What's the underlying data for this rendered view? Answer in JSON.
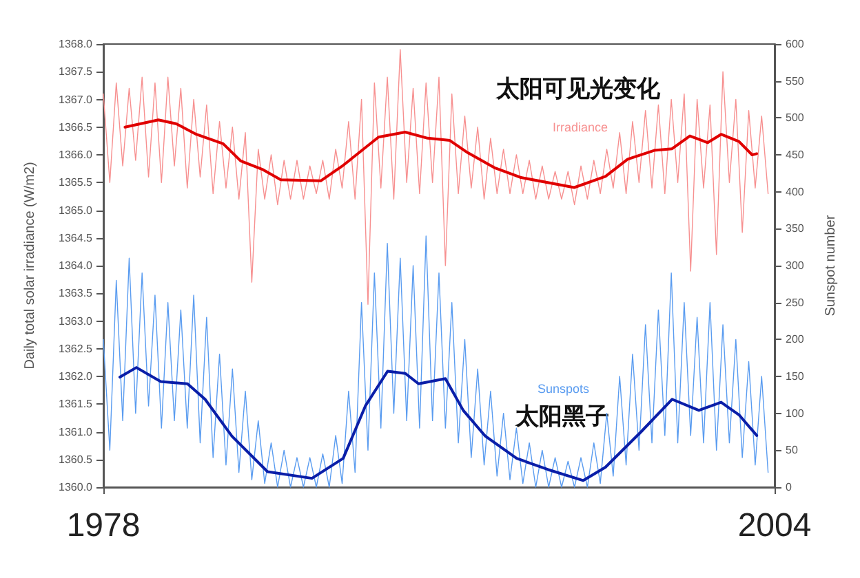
{
  "chart_data": {
    "type": "line",
    "ylabel": "Daily total solar irradiance (W/m2)",
    "y2label": "Sunspot number",
    "annotations": [
      "太阳可见光变化",
      "太阳黑子"
    ],
    "x": [
      1978.0,
      1978.25,
      1978.5,
      1978.75,
      1979.0,
      1979.25,
      1979.5,
      1979.75,
      1980.0,
      1980.25,
      1980.5,
      1980.75,
      1981.0,
      1981.25,
      1981.5,
      1981.75,
      1982.0,
      1982.25,
      1982.5,
      1982.75,
      1983.0,
      1983.25,
      1983.5,
      1983.75,
      1984.0,
      1984.25,
      1984.5,
      1984.75,
      1985.0,
      1985.25,
      1985.5,
      1985.75,
      1986.0,
      1986.25,
      1986.5,
      1986.75,
      1987.0,
      1987.25,
      1987.5,
      1987.75,
      1988.0,
      1988.25,
      1988.5,
      1988.75,
      1989.0,
      1989.25,
      1989.5,
      1989.75,
      1990.0,
      1990.25,
      1990.5,
      1990.75,
      1991.0,
      1991.25,
      1991.5,
      1991.75,
      1992.0,
      1992.25,
      1992.5,
      1992.75,
      1993.0,
      1993.25,
      1993.5,
      1993.75,
      1994.0,
      1994.25,
      1994.5,
      1994.75,
      1995.0,
      1995.25,
      1995.5,
      1995.75,
      1996.0,
      1996.25,
      1996.5,
      1996.75,
      1997.0,
      1997.25,
      1997.5,
      1997.75,
      1998.0,
      1998.25,
      1998.5,
      1998.75,
      1999.0,
      1999.25,
      1999.5,
      1999.75,
      2000.0,
      2000.25,
      2000.5,
      2000.75,
      2001.0,
      2001.25,
      2001.5,
      2001.75,
      2002.0,
      2002.25,
      2002.5,
      2002.75,
      2003.0,
      2003.25,
      2003.5,
      2003.75
    ],
    "series": [
      {
        "name": "Irradiance",
        "color": "#f79090",
        "values": [
          1367.1,
          1365.5,
          1367.3,
          1365.8,
          1367.2,
          1365.9,
          1367.4,
          1365.6,
          1367.3,
          1365.5,
          1367.4,
          1365.8,
          1367.2,
          1365.4,
          1367.0,
          1365.6,
          1366.9,
          1365.3,
          1366.6,
          1365.4,
          1366.5,
          1365.2,
          1366.4,
          1363.7,
          1366.1,
          1365.2,
          1366.0,
          1365.1,
          1365.9,
          1365.2,
          1365.9,
          1365.2,
          1365.8,
          1365.3,
          1365.9,
          1365.2,
          1366.1,
          1365.4,
          1366.6,
          1365.2,
          1367.0,
          1363.3,
          1367.3,
          1365.4,
          1367.4,
          1365.2,
          1367.9,
          1365.5,
          1367.2,
          1365.3,
          1367.3,
          1365.5,
          1367.4,
          1364.0,
          1367.1,
          1365.3,
          1366.7,
          1365.4,
          1366.5,
          1365.2,
          1366.3,
          1365.3,
          1366.1,
          1365.3,
          1366.0,
          1365.3,
          1365.9,
          1365.2,
          1365.8,
          1365.2,
          1365.7,
          1365.2,
          1365.7,
          1365.1,
          1365.8,
          1365.2,
          1365.9,
          1365.3,
          1366.1,
          1365.4,
          1366.4,
          1365.3,
          1366.6,
          1365.5,
          1366.8,
          1365.4,
          1366.9,
          1365.3,
          1367.0,
          1365.5,
          1367.1,
          1363.9,
          1367.0,
          1365.4,
          1366.9,
          1364.2,
          1367.5,
          1365.5,
          1367.0,
          1364.6,
          1366.8,
          1365.4,
          1366.7,
          1365.3
        ]
      },
      {
        "color": "#e00000",
        "x": [
          1978.84,
          1980.13,
          1980.83,
          1981.6,
          1982.64,
          1983.32,
          1984.19,
          1984.87,
          1986.42,
          1987.29,
          1988.66,
          1989.69,
          1990.56,
          1991.42,
          1992.11,
          1993.14,
          1994.18,
          1996.24,
          1997.45,
          1998.31,
          1999.34,
          2000.03,
          2000.72,
          2001.41,
          2001.93,
          2002.62,
          2003.13,
          2003.31
        ],
        "values": [
          1366.5,
          1366.63,
          1366.56,
          1366.37,
          1366.2,
          1365.89,
          1365.73,
          1365.55,
          1365.53,
          1365.81,
          1366.32,
          1366.41,
          1366.3,
          1366.26,
          1366.04,
          1365.77,
          1365.59,
          1365.41,
          1365.61,
          1365.92,
          1366.08,
          1366.11,
          1366.34,
          1366.22,
          1366.37,
          1366.24,
          1366.0,
          1366.02
        ]
      },
      {
        "name": "Sunspots",
        "color": "#5a9cf0",
        "axis": "y2",
        "values": [
          200,
          50,
          280,
          90,
          310,
          100,
          290,
          110,
          260,
          80,
          250,
          90,
          240,
          80,
          260,
          60,
          230,
          40,
          180,
          30,
          160,
          20,
          130,
          10,
          90,
          5,
          60,
          0,
          50,
          0,
          40,
          0,
          40,
          0,
          45,
          0,
          70,
          5,
          130,
          20,
          250,
          50,
          290,
          80,
          330,
          100,
          310,
          90,
          300,
          80,
          340,
          90,
          290,
          80,
          250,
          60,
          200,
          40,
          160,
          30,
          130,
          15,
          100,
          10,
          80,
          5,
          60,
          0,
          50,
          0,
          40,
          0,
          35,
          0,
          40,
          0,
          60,
          5,
          100,
          15,
          150,
          30,
          180,
          50,
          220,
          60,
          240,
          70,
          290,
          60,
          250,
          70,
          230,
          60,
          250,
          50,
          220,
          60,
          200,
          40,
          170,
          30,
          150,
          20
        ]
      },
      {
        "color": "#0a1ea8",
        "axis": "y2",
        "x": [
          1978.64,
          1979.28,
          1980.22,
          1981.26,
          1981.94,
          1982.98,
          1984.36,
          1986.08,
          1987.29,
          1988.15,
          1989.01,
          1989.7,
          1990.21,
          1991.25,
          1991.94,
          1992.8,
          1994.01,
          1995.21,
          1996.59,
          1997.45,
          1998.83,
          2000.03,
          2001.07,
          2001.93,
          2002.62,
          2003.31
        ],
        "values": [
          149,
          162,
          143,
          140,
          119,
          69,
          21,
          12,
          39,
          110,
          157,
          154,
          140,
          147,
          104,
          69,
          39,
          24,
          9,
          27,
          75,
          119,
          104,
          115,
          98,
          70
        ]
      }
    ],
    "xlim": [
      1978,
      2004
    ],
    "xticks": [
      1978,
      2004
    ],
    "ylim": [
      1360,
      1368
    ],
    "yticks": [
      {
        "value": 1360,
        "label": "1360.0"
      },
      {
        "value": 1360.5,
        "label": "1360.5"
      },
      {
        "value": 1361,
        "label": "1361.0"
      },
      {
        "value": 1361.5,
        "label": "1361.5"
      },
      {
        "value": 1362,
        "label": "1362.0"
      },
      {
        "value": 1362.5,
        "label": "1362.5"
      },
      {
        "value": 1363,
        "label": "1363.0"
      },
      {
        "value": 1363.5,
        "label": "1363.5"
      },
      {
        "value": 1364,
        "label": "1364.0"
      },
      {
        "value": 1364.5,
        "label": "1364.5"
      },
      {
        "value": 1365,
        "label": "1365.0"
      },
      {
        "value": 1365.5,
        "label": "1365.5"
      },
      {
        "value": 1366,
        "label": "1366.0"
      },
      {
        "value": 1366.5,
        "label": "1366.5"
      },
      {
        "value": 1367,
        "label": "1367.0"
      },
      {
        "value": 1367.5,
        "label": "1367.5"
      },
      {
        "value": 1368,
        "label": "1368.0"
      }
    ],
    "y2lim": [
      0,
      600
    ],
    "y2ticks": [
      0,
      50,
      100,
      150,
      200,
      250,
      300,
      350,
      400,
      450,
      500,
      550,
      600
    ],
    "grid": false,
    "legend": false,
    "marker": "none",
    "line_style": "solid"
  }
}
